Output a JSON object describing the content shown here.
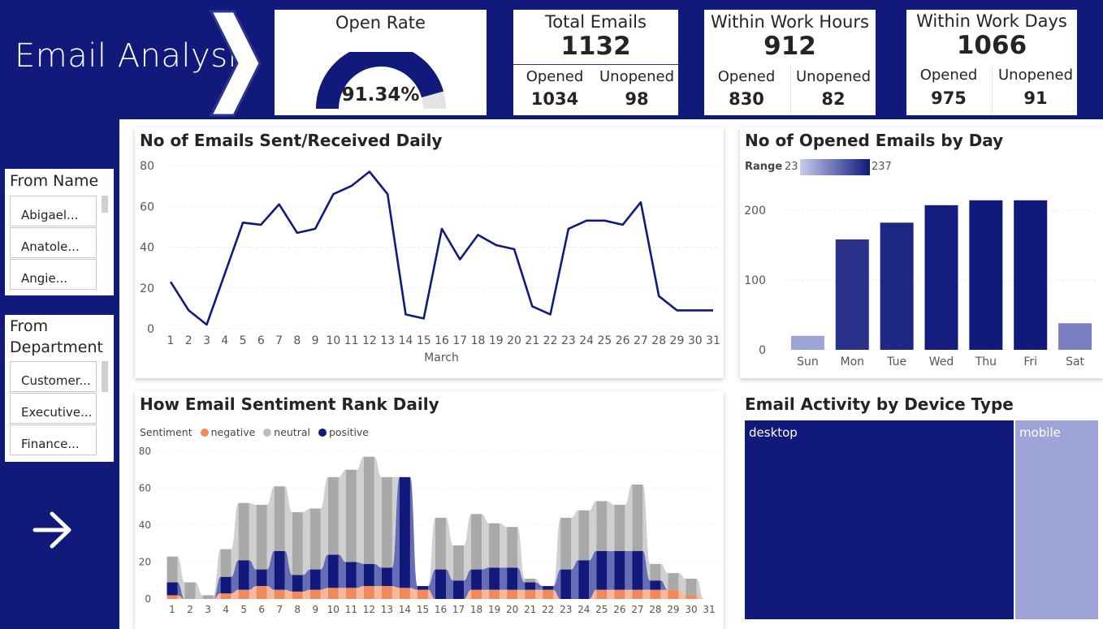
{
  "header": {
    "title": "Email Analysis"
  },
  "kpis": {
    "open_rate": {
      "title": "Open Rate",
      "value": "91.34%",
      "fraction": 0.9134
    },
    "total_emails": {
      "title": "Total Emails",
      "value": "1132",
      "opened_label": "Opened",
      "opened": "1034",
      "unopened_label": "Unopened",
      "unopened": "98"
    },
    "work_hours": {
      "title": "Within Work Hours",
      "value": "912",
      "opened_label": "Opened",
      "opened": "830",
      "unopened_label": "Unopened",
      "unopened": "82"
    },
    "work_days": {
      "title": "Within Work Days",
      "value": "1066",
      "opened_label": "Opened",
      "opened": "975",
      "unopened_label": "Unopened",
      "unopened": "91"
    }
  },
  "slicers": {
    "from_name": {
      "title": "From Name",
      "items": [
        "Abigael...",
        "Anatole...",
        "Angie..."
      ]
    },
    "from_department": {
      "title_line1": "From",
      "title_line2": "Department",
      "items": [
        "Customer...",
        "Executive...",
        "Finance..."
      ]
    }
  },
  "nav": {
    "arrow_icon": "arrow-right-icon"
  },
  "colors": {
    "navy": "#111a7b",
    "light_purple": "#9ea3d8",
    "orange": "#f08a5d",
    "grey": "#bdbdbd"
  },
  "daily_chart": {
    "title": "No of Emails Sent/Received Daily",
    "xlabel": "March",
    "yticks": [
      "0",
      "20",
      "40",
      "60",
      "80"
    ],
    "chart_data": {
      "type": "line",
      "x": [
        1,
        2,
        3,
        4,
        5,
        6,
        7,
        8,
        9,
        10,
        11,
        12,
        13,
        14,
        15,
        16,
        17,
        18,
        19,
        20,
        21,
        22,
        23,
        24,
        25,
        26,
        27,
        28,
        29,
        30,
        31
      ],
      "values": [
        23,
        9,
        2,
        27,
        52,
        51,
        61,
        47,
        49,
        66,
        70,
        77,
        66,
        7,
        5,
        49,
        34,
        46,
        41,
        39,
        11,
        7,
        49,
        53,
        53,
        51,
        62,
        16,
        9,
        9,
        9
      ],
      "ylim": [
        0,
        80
      ]
    }
  },
  "day_chart": {
    "title": "No of Opened Emails by Day",
    "range_label": "Range",
    "range_min": "23",
    "range_max": "237",
    "yticks": [
      "0",
      "100",
      "200"
    ],
    "chart_data": {
      "type": "bar",
      "categories": [
        "Sun",
        "Mon",
        "Tue",
        "Wed",
        "Thu",
        "Fri",
        "Sat"
      ],
      "values": [
        20,
        158,
        182,
        207,
        214,
        214,
        38
      ],
      "ylim": [
        0,
        237
      ]
    }
  },
  "sentiment_chart": {
    "title": "How Email Sentiment Rank Daily",
    "legend_title": "Sentiment",
    "yticks": [
      "0",
      "20",
      "40",
      "60",
      "80"
    ],
    "chart_data": {
      "type": "area",
      "x": [
        1,
        2,
        3,
        4,
        5,
        6,
        7,
        8,
        9,
        10,
        11,
        12,
        13,
        14,
        15,
        16,
        17,
        18,
        19,
        20,
        21,
        22,
        23,
        24,
        25,
        26,
        27,
        28,
        29,
        30,
        31
      ],
      "series": [
        {
          "name": "negative",
          "values": [
            2,
            0,
            0,
            3,
            5,
            7,
            5,
            4,
            5,
            6,
            6,
            7,
            7,
            6,
            5,
            0,
            0,
            5,
            5,
            5,
            5,
            5,
            0,
            0,
            5,
            5,
            5,
            5,
            5,
            2,
            0
          ]
        },
        {
          "name": "neutral",
          "values": [
            14,
            9,
            2,
            15,
            31,
            35,
            35,
            34,
            33,
            42,
            50,
            58,
            49,
            0,
            0,
            28,
            19,
            30,
            24,
            22,
            2,
            0,
            28,
            27,
            27,
            25,
            36,
            9,
            9,
            9,
            0
          ]
        },
        {
          "name": "positive",
          "values": [
            7,
            0,
            0,
            9,
            16,
            9,
            21,
            9,
            11,
            18,
            14,
            12,
            10,
            60,
            2,
            16,
            10,
            11,
            12,
            12,
            4,
            2,
            16,
            21,
            21,
            21,
            21,
            5,
            0,
            0,
            0
          ]
        }
      ],
      "ylim": [
        0,
        80
      ]
    }
  },
  "device_chart": {
    "title": "Email Activity by Device Type",
    "chart_data": {
      "type": "treemap",
      "categories": [
        "desktop",
        "mobile"
      ],
      "values": [
        0.762,
        0.238
      ]
    }
  }
}
